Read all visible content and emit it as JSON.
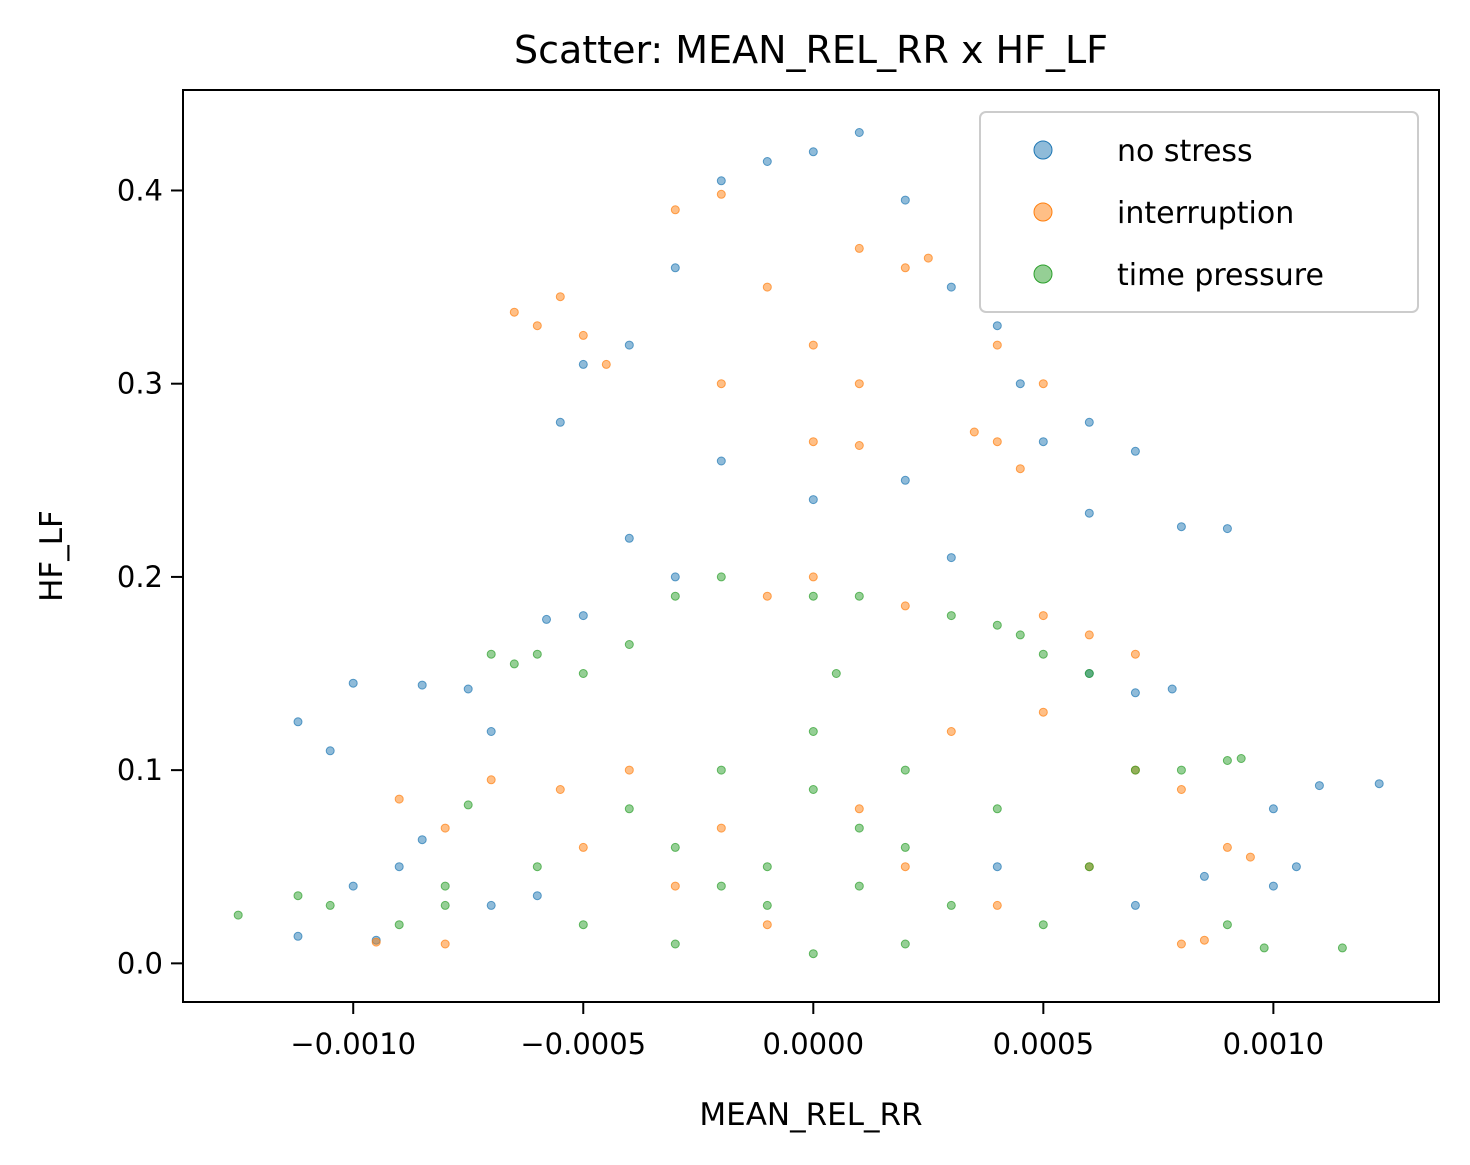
{
  "chart_data": {
    "type": "scatter",
    "title": "Scatter: MEAN_REL_RR x HF_LF",
    "xlabel": "MEAN_REL_RR",
    "ylabel": "HF_LF",
    "xlim": [
      -0.00137,
      0.00136
    ],
    "ylim": [
      -0.02,
      0.452
    ],
    "x_ticks": [
      -0.001,
      -0.0005,
      0.0,
      0.0005,
      0.001
    ],
    "x_tick_labels": [
      "−0.0010",
      "−0.0005",
      "0.0000",
      "0.0005",
      "0.0010"
    ],
    "y_ticks": [
      0.0,
      0.1,
      0.2,
      0.3,
      0.4
    ],
    "y_tick_labels": [
      "0.0",
      "0.1",
      "0.2",
      "0.3",
      "0.4"
    ],
    "grid": false,
    "legend_position": "top-right",
    "series": [
      {
        "name": "no stress",
        "color": "#1f77b4",
        "alpha": 0.5,
        "points": [
          [
            0.0,
            0.42
          ],
          [
            0.0001,
            0.43
          ],
          [
            -0.0001,
            0.415
          ],
          [
            -0.0002,
            0.405
          ],
          [
            0.0002,
            0.395
          ],
          [
            -0.0003,
            0.36
          ],
          [
            0.0003,
            0.35
          ],
          [
            0.0004,
            0.33
          ],
          [
            -0.0004,
            0.32
          ],
          [
            -0.0005,
            0.31
          ],
          [
            -0.00055,
            0.28
          ],
          [
            0.00045,
            0.3
          ],
          [
            0.0005,
            0.27
          ],
          [
            0.0006,
            0.28
          ],
          [
            0.0007,
            0.265
          ],
          [
            0.0009,
            0.225
          ],
          [
            0.0008,
            0.226
          ],
          [
            0.0006,
            0.233
          ],
          [
            0.0002,
            0.25
          ],
          [
            0.0,
            0.24
          ],
          [
            -0.0002,
            0.26
          ],
          [
            -0.0004,
            0.22
          ],
          [
            0.0003,
            0.21
          ],
          [
            -0.0003,
            0.2
          ],
          [
            -0.0005,
            0.18
          ],
          [
            -0.00058,
            0.178
          ],
          [
            -0.00075,
            0.142
          ],
          [
            -0.00085,
            0.144
          ],
          [
            -0.001,
            0.145
          ],
          [
            -0.00105,
            0.11
          ],
          [
            -0.00112,
            0.125
          ],
          [
            -0.0007,
            0.12
          ],
          [
            0.0007,
            0.14
          ],
          [
            0.00078,
            0.142
          ],
          [
            0.0006,
            0.15
          ],
          [
            0.0011,
            0.092
          ],
          [
            0.00123,
            0.093
          ],
          [
            0.001,
            0.08
          ],
          [
            0.00105,
            0.05
          ],
          [
            0.001,
            0.04
          ],
          [
            0.00085,
            0.045
          ],
          [
            -0.00085,
            0.064
          ],
          [
            -0.0009,
            0.05
          ],
          [
            -0.001,
            0.04
          ],
          [
            -0.00112,
            0.014
          ],
          [
            -0.00095,
            0.012
          ],
          [
            -0.0007,
            0.03
          ],
          [
            -0.0006,
            0.035
          ],
          [
            0.0007,
            0.03
          ],
          [
            0.0004,
            0.05
          ]
        ]
      },
      {
        "name": "interruption",
        "color": "#ff7f0e",
        "alpha": 0.5,
        "points": [
          [
            -0.0002,
            0.398
          ],
          [
            -0.0003,
            0.39
          ],
          [
            0.0001,
            0.37
          ],
          [
            0.0002,
            0.36
          ],
          [
            -0.0001,
            0.35
          ],
          [
            0.00025,
            0.365
          ],
          [
            -0.00055,
            0.345
          ],
          [
            -0.00065,
            0.337
          ],
          [
            -0.0006,
            0.33
          ],
          [
            -0.0005,
            0.325
          ],
          [
            -0.00045,
            0.31
          ],
          [
            -0.0002,
            0.3
          ],
          [
            0.0,
            0.32
          ],
          [
            0.0001,
            0.3
          ],
          [
            0.0004,
            0.32
          ],
          [
            0.0005,
            0.3
          ],
          [
            0.0004,
            0.27
          ],
          [
            0.00035,
            0.275
          ],
          [
            0.00045,
            0.256
          ],
          [
            0.0,
            0.27
          ],
          [
            0.0001,
            0.268
          ],
          [
            0.0,
            0.2
          ],
          [
            -0.0001,
            0.19
          ],
          [
            0.0002,
            0.185
          ],
          [
            0.0005,
            0.18
          ],
          [
            0.0006,
            0.17
          ],
          [
            0.0007,
            0.16
          ],
          [
            0.0005,
            0.13
          ],
          [
            0.0003,
            0.12
          ],
          [
            -0.0004,
            0.1
          ],
          [
            -0.00055,
            0.09
          ],
          [
            -0.0007,
            0.095
          ],
          [
            -0.0009,
            0.085
          ],
          [
            -0.0008,
            0.07
          ],
          [
            -0.0005,
            0.06
          ],
          [
            0.0007,
            0.1
          ],
          [
            0.0008,
            0.09
          ],
          [
            0.0009,
            0.06
          ],
          [
            0.00095,
            0.055
          ],
          [
            0.0006,
            0.05
          ],
          [
            -0.00095,
            0.011
          ],
          [
            -0.0008,
            0.01
          ],
          [
            0.0008,
            0.01
          ],
          [
            0.00085,
            0.012
          ],
          [
            0.0002,
            0.05
          ],
          [
            -0.0002,
            0.07
          ],
          [
            0.0001,
            0.08
          ],
          [
            -0.0003,
            0.04
          ],
          [
            0.0004,
            0.03
          ],
          [
            -0.0001,
            0.02
          ]
        ]
      },
      {
        "name": "time pressure",
        "color": "#2ca02c",
        "alpha": 0.5,
        "points": [
          [
            -0.00125,
            0.025
          ],
          [
            -0.00112,
            0.035
          ],
          [
            -0.00105,
            0.03
          ],
          [
            -0.0009,
            0.02
          ],
          [
            -0.0008,
            0.03
          ],
          [
            -0.0007,
            0.16
          ],
          [
            -0.00065,
            0.155
          ],
          [
            -0.0006,
            0.16
          ],
          [
            -0.0005,
            0.15
          ],
          [
            -0.0004,
            0.165
          ],
          [
            -0.0003,
            0.19
          ],
          [
            -0.0002,
            0.2
          ],
          [
            0.0,
            0.19
          ],
          [
            0.0001,
            0.19
          ],
          [
            0.0003,
            0.18
          ],
          [
            0.0004,
            0.175
          ],
          [
            0.00045,
            0.17
          ],
          [
            0.0005,
            0.16
          ],
          [
            0.0006,
            0.15
          ],
          [
            0.0007,
            0.1
          ],
          [
            0.0008,
            0.1
          ],
          [
            0.0009,
            0.105
          ],
          [
            0.00093,
            0.106
          ],
          [
            0.00115,
            0.008
          ],
          [
            0.00098,
            0.008
          ],
          [
            0.0009,
            0.02
          ],
          [
            0.0006,
            0.05
          ],
          [
            0.0004,
            0.08
          ],
          [
            0.0002,
            0.1
          ],
          [
            0.0,
            0.12
          ],
          [
            -0.0002,
            0.1
          ],
          [
            -0.0004,
            0.08
          ],
          [
            -0.0006,
            0.05
          ],
          [
            -0.0008,
            0.04
          ],
          [
            -0.00075,
            0.082
          ],
          [
            -0.0003,
            0.06
          ],
          [
            -0.0001,
            0.05
          ],
          [
            0.0001,
            0.04
          ],
          [
            0.0003,
            0.03
          ],
          [
            0.0005,
            0.02
          ],
          [
            -0.0005,
            0.02
          ],
          [
            -0.0003,
            0.01
          ],
          [
            0.0,
            0.005
          ],
          [
            0.0002,
            0.01
          ],
          [
            -0.0001,
            0.03
          ],
          [
            0.0001,
            0.07
          ],
          [
            -0.0002,
            0.04
          ],
          [
            0.0002,
            0.06
          ],
          [
            0.0,
            0.09
          ],
          [
            5e-05,
            0.15
          ]
        ]
      }
    ]
  }
}
